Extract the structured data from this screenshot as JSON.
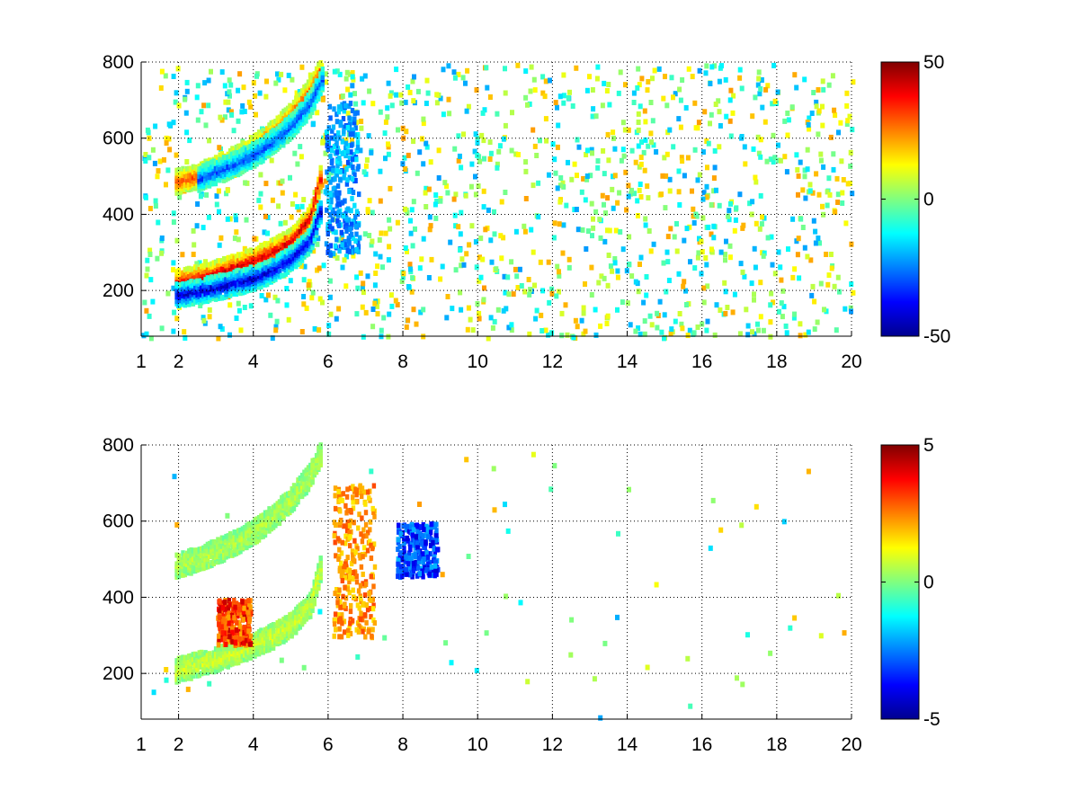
{
  "chart_data": [
    {
      "type": "heatmap",
      "title": "",
      "xlabel": "",
      "ylabel": "",
      "xlim": [
        1,
        20
      ],
      "ylim": [
        80,
        800
      ],
      "xticks": [
        1,
        2,
        4,
        6,
        8,
        10,
        12,
        14,
        16,
        18,
        20
      ],
      "yticks": [
        200,
        400,
        600,
        800
      ],
      "grid": true,
      "colormap": "jet",
      "clim": [
        -50,
        50
      ],
      "colorbar_ticks": [
        -50,
        0,
        50
      ],
      "colorbar_tick_labels": [
        "-50",
        "0",
        "50"
      ],
      "features": [
        {
          "kind": "band",
          "x": [
            1.9,
            2.5,
            3.0,
            3.5,
            4.0,
            4.5,
            5.0,
            5.5,
            5.8
          ],
          "y": [
            228,
            240,
            255,
            270,
            288,
            310,
            340,
            400,
            520
          ],
          "value": 42
        },
        {
          "kind": "band",
          "x": [
            1.9,
            2.5,
            3.0,
            3.5,
            4.0,
            4.5,
            5.0,
            5.5,
            5.8
          ],
          "y": [
            195,
            205,
            215,
            228,
            240,
            262,
            292,
            340,
            430
          ],
          "value": -42
        },
        {
          "kind": "band",
          "x": [
            1.9,
            2.5,
            3.0,
            3.5,
            4.0,
            4.5,
            5.0,
            5.5,
            5.8
          ],
          "y": [
            492,
            508,
            530,
            555,
            585,
            622,
            670,
            735,
            790
          ],
          "value": 30
        },
        {
          "kind": "band",
          "x": [
            2.5,
            3.0,
            3.5,
            4.0,
            4.5,
            5.0,
            5.5,
            5.8
          ],
          "y": [
            500,
            520,
            540,
            565,
            598,
            640,
            700,
            760
          ],
          "value": -30
        },
        {
          "kind": "patch",
          "x": [
            5.9,
            6.8
          ],
          "y": [
            300,
            700
          ],
          "value": -28
        }
      ]
    },
    {
      "type": "heatmap",
      "title": "",
      "xlabel": "",
      "ylabel": "",
      "xlim": [
        1,
        20
      ],
      "ylim": [
        80,
        800
      ],
      "xticks": [
        1,
        2,
        4,
        6,
        8,
        10,
        12,
        14,
        16,
        18,
        20
      ],
      "yticks": [
        200,
        400,
        600,
        800
      ],
      "grid": true,
      "colormap": "jet",
      "clim": [
        -5,
        5
      ],
      "colorbar_ticks": [
        -5,
        0,
        5
      ],
      "colorbar_tick_labels": [
        "-5",
        "0",
        "5"
      ],
      "features": [
        {
          "kind": "band",
          "x": [
            1.9,
            2.5,
            3.0,
            3.5,
            4.0,
            4.5,
            5.0,
            5.5,
            5.8
          ],
          "y": [
            215,
            230,
            245,
            262,
            282,
            305,
            335,
            390,
            500
          ],
          "value": 0.8
        },
        {
          "kind": "band",
          "x": [
            1.9,
            2.5,
            3.0,
            3.5,
            4.0,
            4.5,
            5.0,
            5.5,
            5.8
          ],
          "y": [
            490,
            506,
            528,
            552,
            580,
            618,
            665,
            730,
            790
          ],
          "value": 0.5
        },
        {
          "kind": "patch",
          "x": [
            6.1,
            7.2
          ],
          "y": [
            300,
            700
          ],
          "value": 2.8
        },
        {
          "kind": "patch",
          "x": [
            7.8,
            8.9
          ],
          "y": [
            460,
            600
          ],
          "value": -3.8
        },
        {
          "kind": "patch",
          "x": [
            3.0,
            3.9
          ],
          "y": [
            280,
            400
          ],
          "value": 4.0
        }
      ]
    }
  ]
}
